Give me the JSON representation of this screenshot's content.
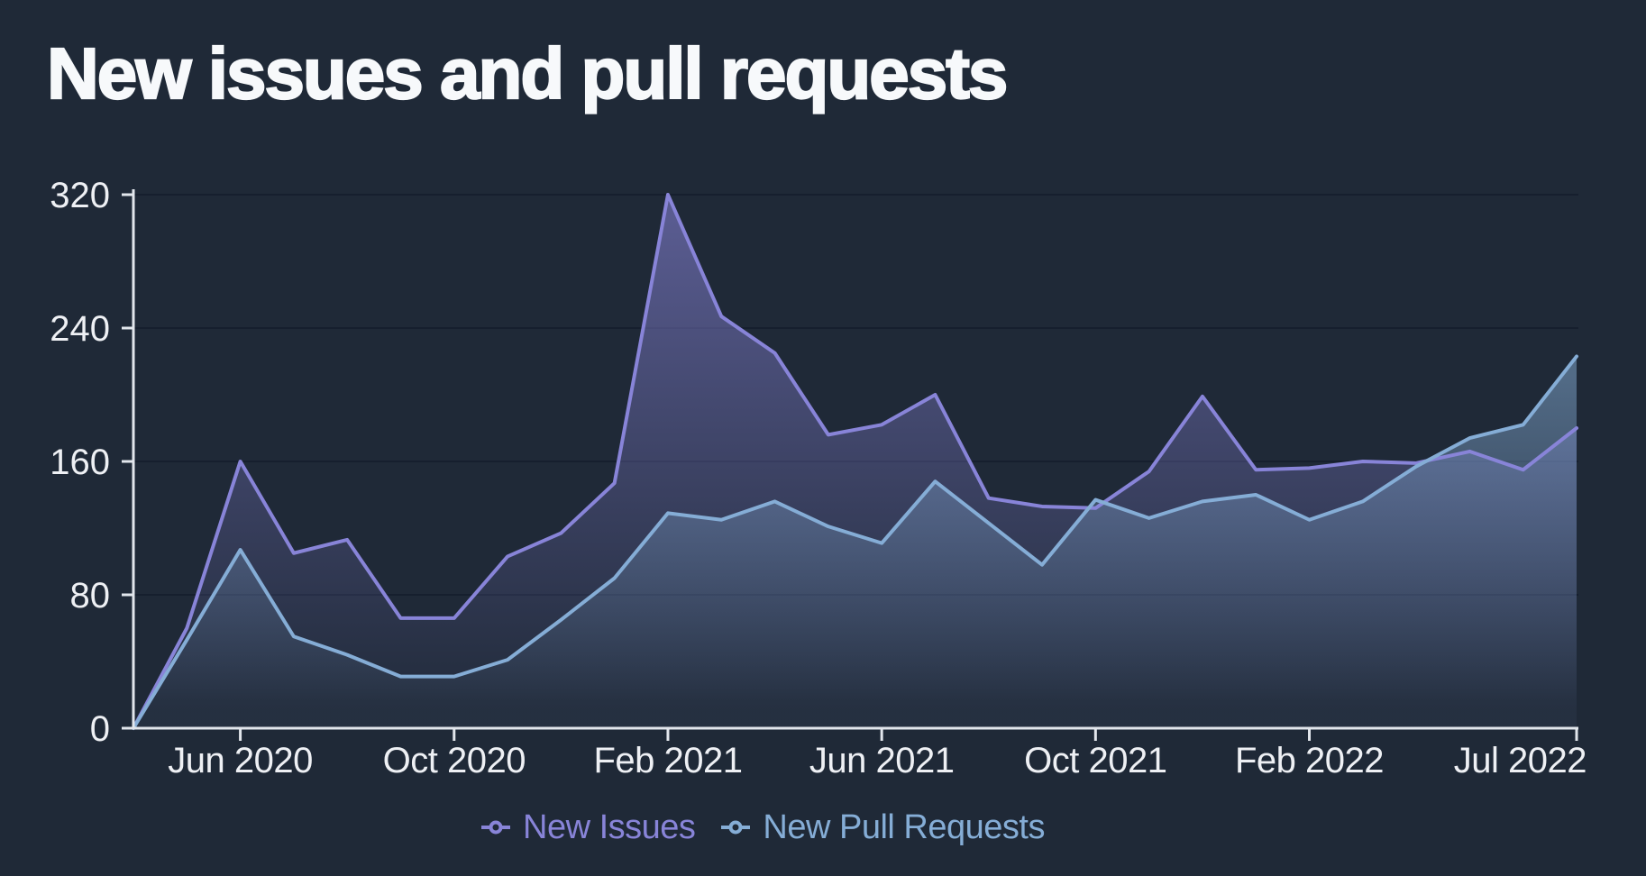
{
  "title": "New issues and pull requests",
  "chart_data": {
    "type": "area",
    "x": [
      "Apr 2020",
      "May 2020",
      "Jun 2020",
      "Jul 2020",
      "Aug 2020",
      "Sep 2020",
      "Oct 2020",
      "Nov 2020",
      "Dec 2020",
      "Jan 2021",
      "Feb 2021",
      "Mar 2021",
      "Apr 2021",
      "May 2021",
      "Jun 2021",
      "Jul 2021",
      "Aug 2021",
      "Sep 2021",
      "Oct 2021",
      "Nov 2021",
      "Dec 2021",
      "Jan 2022",
      "Feb 2022",
      "Mar 2022",
      "Apr 2022",
      "May 2022",
      "Jun 2022",
      "Jul 2022"
    ],
    "series": [
      {
        "name": "New Issues",
        "color": "#8884d8",
        "values": [
          0,
          60,
          160,
          105,
          113,
          66,
          66,
          103,
          117,
          147,
          320,
          247,
          225,
          176,
          182,
          200,
          138,
          133,
          132,
          154,
          199,
          155,
          156,
          160,
          159,
          166,
          155,
          180
        ]
      },
      {
        "name": "New Pull Requests",
        "color": "#85add6",
        "values": [
          0,
          53,
          107,
          55,
          44,
          31,
          31,
          41,
          65,
          90,
          129,
          125,
          136,
          121,
          111,
          148,
          123,
          98,
          137,
          126,
          136,
          140,
          125,
          136,
          157,
          174,
          182,
          223
        ]
      }
    ],
    "x_tick_indices": [
      2,
      6,
      10,
      14,
      18,
      22,
      27
    ],
    "x_tick_labels": [
      "Jun 2020",
      "Oct 2020",
      "Feb 2021",
      "Jun 2021",
      "Oct 2021",
      "Feb 2022",
      "Jul 2022"
    ],
    "y_ticks": [
      0,
      80,
      160,
      240,
      320
    ],
    "ylim": [
      0,
      320
    ],
    "grid": "horizontal",
    "legend_position": "bottom",
    "background": "#1f2937",
    "grid_color": "#161f2e",
    "axis_color": "#e2e6ec",
    "label_color": "#eef0f4"
  },
  "legend": {
    "items": [
      {
        "label": "New Issues",
        "color": "#8884d8"
      },
      {
        "label": "New Pull Requests",
        "color": "#85add6"
      }
    ]
  }
}
